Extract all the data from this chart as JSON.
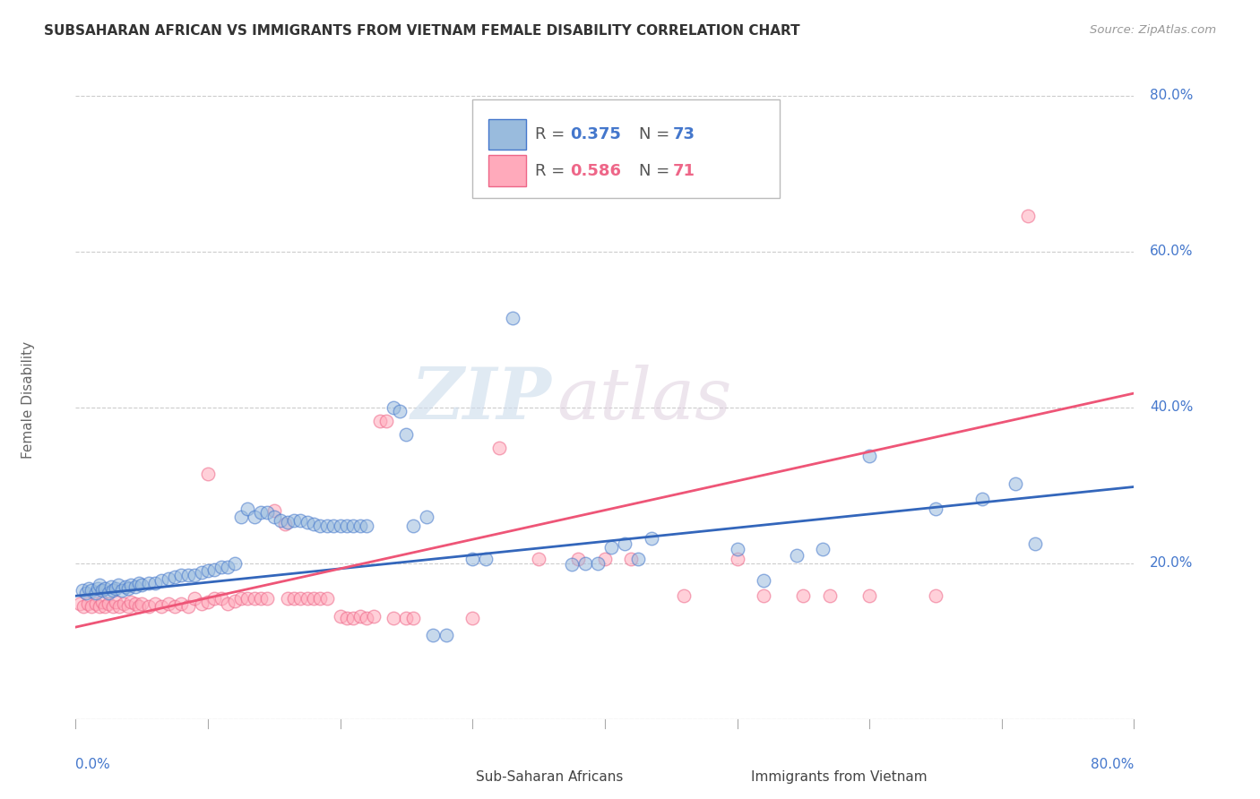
{
  "title": "SUBSAHARAN AFRICAN VS IMMIGRANTS FROM VIETNAM FEMALE DISABILITY CORRELATION CHART",
  "source": "Source: ZipAtlas.com",
  "ylabel": "Female Disability",
  "xlim": [
    0.0,
    0.8
  ],
  "ylim": [
    0.0,
    0.82
  ],
  "yticks": [
    0.0,
    0.2,
    0.4,
    0.6,
    0.8
  ],
  "ytick_labels": [
    "",
    "20.0%",
    "40.0%",
    "60.0%",
    "80.0%"
  ],
  "xtick_labels": [
    "0.0%",
    "",
    "",
    "",
    "",
    "",
    "",
    "",
    "80.0%"
  ],
  "background_color": "#ffffff",
  "watermark_zip": "ZIP",
  "watermark_atlas": "atlas",
  "blue_color": "#99bbdd",
  "pink_color": "#ffaabb",
  "blue_edge_color": "#4477cc",
  "pink_edge_color": "#ee6688",
  "blue_line_color": "#3366bb",
  "pink_line_color": "#ee5577",
  "blue_scatter": [
    [
      0.005,
      0.165
    ],
    [
      0.008,
      0.162
    ],
    [
      0.01,
      0.168
    ],
    [
      0.012,
      0.165
    ],
    [
      0.015,
      0.162
    ],
    [
      0.017,
      0.168
    ],
    [
      0.018,
      0.172
    ],
    [
      0.02,
      0.165
    ],
    [
      0.022,
      0.168
    ],
    [
      0.025,
      0.162
    ],
    [
      0.027,
      0.17
    ],
    [
      0.028,
      0.165
    ],
    [
      0.03,
      0.168
    ],
    [
      0.032,
      0.172
    ],
    [
      0.035,
      0.165
    ],
    [
      0.038,
      0.17
    ],
    [
      0.04,
      0.168
    ],
    [
      0.042,
      0.172
    ],
    [
      0.045,
      0.17
    ],
    [
      0.048,
      0.175
    ],
    [
      0.05,
      0.172
    ],
    [
      0.055,
      0.175
    ],
    [
      0.06,
      0.175
    ],
    [
      0.065,
      0.178
    ],
    [
      0.07,
      0.18
    ],
    [
      0.075,
      0.182
    ],
    [
      0.08,
      0.185
    ],
    [
      0.085,
      0.185
    ],
    [
      0.09,
      0.185
    ],
    [
      0.095,
      0.188
    ],
    [
      0.1,
      0.19
    ],
    [
      0.105,
      0.192
    ],
    [
      0.11,
      0.195
    ],
    [
      0.115,
      0.195
    ],
    [
      0.12,
      0.2
    ],
    [
      0.125,
      0.26
    ],
    [
      0.13,
      0.27
    ],
    [
      0.135,
      0.26
    ],
    [
      0.14,
      0.265
    ],
    [
      0.145,
      0.265
    ],
    [
      0.15,
      0.26
    ],
    [
      0.155,
      0.255
    ],
    [
      0.16,
      0.252
    ],
    [
      0.165,
      0.255
    ],
    [
      0.17,
      0.255
    ],
    [
      0.175,
      0.252
    ],
    [
      0.18,
      0.25
    ],
    [
      0.185,
      0.248
    ],
    [
      0.19,
      0.248
    ],
    [
      0.195,
      0.248
    ],
    [
      0.2,
      0.248
    ],
    [
      0.205,
      0.248
    ],
    [
      0.21,
      0.248
    ],
    [
      0.215,
      0.248
    ],
    [
      0.22,
      0.248
    ],
    [
      0.24,
      0.4
    ],
    [
      0.245,
      0.395
    ],
    [
      0.25,
      0.365
    ],
    [
      0.255,
      0.248
    ],
    [
      0.265,
      0.26
    ],
    [
      0.27,
      0.108
    ],
    [
      0.28,
      0.108
    ],
    [
      0.3,
      0.205
    ],
    [
      0.31,
      0.205
    ],
    [
      0.33,
      0.515
    ],
    [
      0.375,
      0.198
    ],
    [
      0.385,
      0.2
    ],
    [
      0.395,
      0.2
    ],
    [
      0.405,
      0.22
    ],
    [
      0.415,
      0.225
    ],
    [
      0.425,
      0.205
    ],
    [
      0.435,
      0.232
    ],
    [
      0.5,
      0.218
    ],
    [
      0.52,
      0.178
    ],
    [
      0.545,
      0.21
    ],
    [
      0.565,
      0.218
    ],
    [
      0.6,
      0.338
    ],
    [
      0.65,
      0.27
    ],
    [
      0.685,
      0.282
    ],
    [
      0.71,
      0.302
    ],
    [
      0.725,
      0.225
    ]
  ],
  "pink_scatter": [
    [
      0.003,
      0.148
    ],
    [
      0.006,
      0.145
    ],
    [
      0.009,
      0.148
    ],
    [
      0.012,
      0.145
    ],
    [
      0.015,
      0.148
    ],
    [
      0.018,
      0.145
    ],
    [
      0.02,
      0.15
    ],
    [
      0.022,
      0.145
    ],
    [
      0.025,
      0.148
    ],
    [
      0.028,
      0.145
    ],
    [
      0.03,
      0.15
    ],
    [
      0.033,
      0.145
    ],
    [
      0.036,
      0.148
    ],
    [
      0.04,
      0.145
    ],
    [
      0.042,
      0.15
    ],
    [
      0.045,
      0.148
    ],
    [
      0.048,
      0.145
    ],
    [
      0.05,
      0.148
    ],
    [
      0.055,
      0.145
    ],
    [
      0.06,
      0.148
    ],
    [
      0.065,
      0.145
    ],
    [
      0.07,
      0.148
    ],
    [
      0.075,
      0.145
    ],
    [
      0.08,
      0.148
    ],
    [
      0.085,
      0.145
    ],
    [
      0.09,
      0.155
    ],
    [
      0.095,
      0.148
    ],
    [
      0.1,
      0.15
    ],
    [
      0.1,
      0.315
    ],
    [
      0.105,
      0.155
    ],
    [
      0.11,
      0.155
    ],
    [
      0.115,
      0.148
    ],
    [
      0.12,
      0.152
    ],
    [
      0.125,
      0.155
    ],
    [
      0.13,
      0.155
    ],
    [
      0.135,
      0.155
    ],
    [
      0.14,
      0.155
    ],
    [
      0.145,
      0.155
    ],
    [
      0.15,
      0.268
    ],
    [
      0.158,
      0.25
    ],
    [
      0.16,
      0.155
    ],
    [
      0.165,
      0.155
    ],
    [
      0.17,
      0.155
    ],
    [
      0.175,
      0.155
    ],
    [
      0.18,
      0.155
    ],
    [
      0.185,
      0.155
    ],
    [
      0.19,
      0.155
    ],
    [
      0.2,
      0.132
    ],
    [
      0.205,
      0.13
    ],
    [
      0.21,
      0.13
    ],
    [
      0.215,
      0.132
    ],
    [
      0.22,
      0.13
    ],
    [
      0.225,
      0.132
    ],
    [
      0.23,
      0.382
    ],
    [
      0.235,
      0.382
    ],
    [
      0.24,
      0.13
    ],
    [
      0.25,
      0.13
    ],
    [
      0.255,
      0.13
    ],
    [
      0.3,
      0.13
    ],
    [
      0.32,
      0.348
    ],
    [
      0.35,
      0.205
    ],
    [
      0.38,
      0.205
    ],
    [
      0.4,
      0.205
    ],
    [
      0.42,
      0.205
    ],
    [
      0.46,
      0.158
    ],
    [
      0.5,
      0.205
    ],
    [
      0.52,
      0.158
    ],
    [
      0.55,
      0.158
    ],
    [
      0.57,
      0.158
    ],
    [
      0.6,
      0.158
    ],
    [
      0.65,
      0.158
    ],
    [
      0.72,
      0.645
    ]
  ],
  "blue_trend_x": [
    0.0,
    0.8
  ],
  "blue_trend_y": [
    0.158,
    0.298
  ],
  "pink_trend_x": [
    0.0,
    0.8
  ],
  "pink_trend_y": [
    0.118,
    0.418
  ]
}
